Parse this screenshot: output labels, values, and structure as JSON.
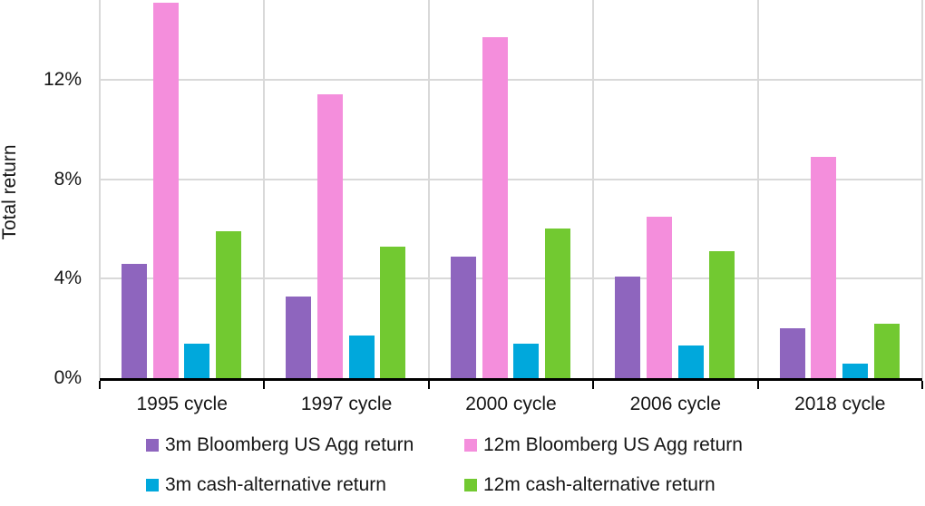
{
  "chart_data": {
    "type": "bar",
    "title": "",
    "categories": [
      "1995 cycle",
      "1997 cycle",
      "2000 cycle",
      "2006 cycle",
      "2018 cycle"
    ],
    "series": [
      {
        "name": "3m Bloomberg US Agg return",
        "color": "#8E65BE",
        "values": [
          4.6,
          3.3,
          4.9,
          4.1,
          2.0
        ]
      },
      {
        "name": "12m Bloomberg US Agg return",
        "color": "#F48EDC",
        "values": [
          15.1,
          11.4,
          13.7,
          6.5,
          8.9
        ]
      },
      {
        "name": "3m cash-alternative return",
        "color": "#00A8DC",
        "values": [
          1.4,
          1.7,
          1.4,
          1.3,
          0.6
        ]
      },
      {
        "name": "12m cash-alternative return",
        "color": "#72C931",
        "values": [
          5.9,
          5.3,
          6.0,
          5.1,
          2.2
        ]
      }
    ],
    "xlabel": "",
    "ylabel": "Total return",
    "values_unit": "percent",
    "ylim": [
      0,
      15.2
    ],
    "y_ticks": [
      {
        "value": 0,
        "label": "0%"
      },
      {
        "value": 4,
        "label": "4%"
      },
      {
        "value": 8,
        "label": "8%"
      },
      {
        "value": 12,
        "label": "12%"
      }
    ],
    "grid": {
      "horizontal": true,
      "vertical": "category-boundaries",
      "color": "#D9D9D9"
    },
    "axis_color": "#000000",
    "legend_position": "bottom"
  }
}
